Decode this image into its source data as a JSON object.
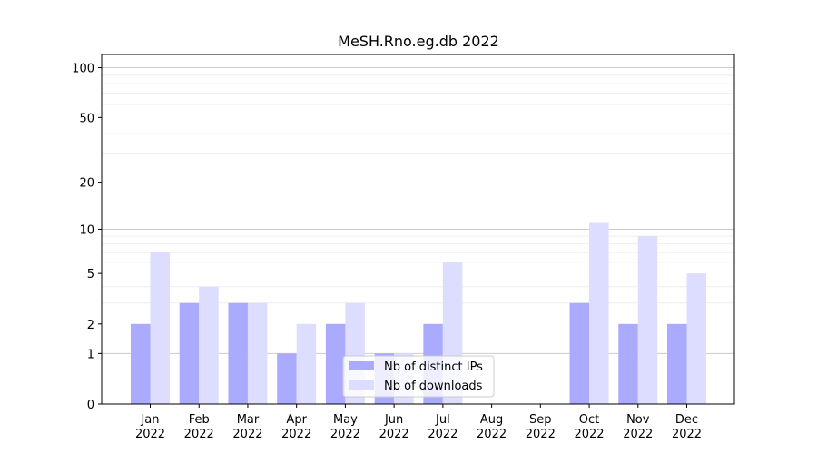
{
  "chart_data": {
    "type": "bar",
    "title": "MeSH.Rno.eg.db 2022",
    "xlabel": "",
    "ylabel": "",
    "y_scale": "log(1+y)",
    "ylim": [
      0,
      120
    ],
    "y_ticks": [
      0,
      1,
      2,
      5,
      10,
      20,
      50,
      100
    ],
    "categories": [
      [
        "Jan",
        "2022"
      ],
      [
        "Feb",
        "2022"
      ],
      [
        "Mar",
        "2022"
      ],
      [
        "Apr",
        "2022"
      ],
      [
        "May",
        "2022"
      ],
      [
        "Jun",
        "2022"
      ],
      [
        "Jul",
        "2022"
      ],
      [
        "Aug",
        "2022"
      ],
      [
        "Sep",
        "2022"
      ],
      [
        "Oct",
        "2022"
      ],
      [
        "Nov",
        "2022"
      ],
      [
        "Dec",
        "2022"
      ]
    ],
    "series": [
      {
        "name": "Nb of distinct IPs",
        "color": "#aaaaff",
        "values": [
          2,
          3,
          3,
          1,
          2,
          1,
          2,
          0,
          0,
          3,
          2,
          2
        ]
      },
      {
        "name": "Nb of downloads",
        "color": "#ddddff",
        "values": [
          7,
          4,
          3,
          2,
          3,
          1,
          6,
          0,
          0,
          11,
          9,
          5
        ]
      }
    ],
    "legend": {
      "position": "bottom-center"
    },
    "grid": true
  }
}
